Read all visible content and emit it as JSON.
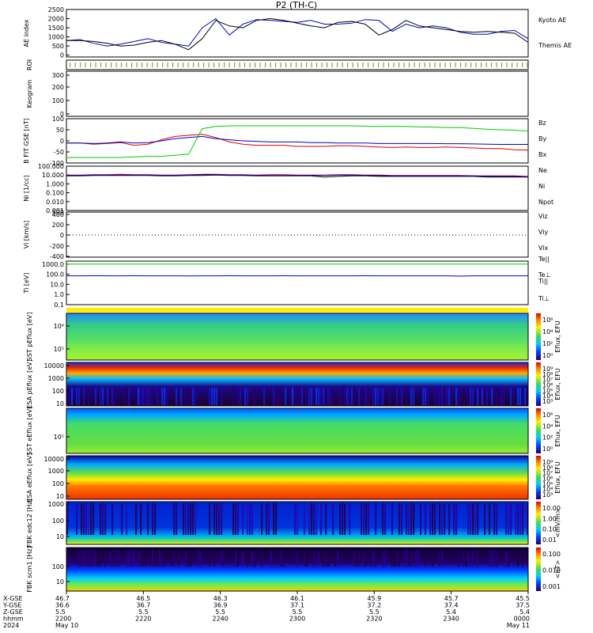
{
  "chart_data": [
    {
      "type": "line",
      "title": "P2 (TH-C)",
      "ylabel": "AE index",
      "ylim": [
        -100,
        2500
      ],
      "yticks": [
        "2500",
        "2000",
        "1500",
        "1000",
        "500",
        "0"
      ],
      "series": [
        {
          "name": "Kyoto AE",
          "color": "#0000cc",
          "values": [
            800,
            850,
            650,
            500,
            600,
            750,
            900,
            700,
            600,
            500,
            1500,
            2000,
            1100,
            1700,
            1950,
            1900,
            1850,
            1800,
            1900,
            1700,
            1700,
            1750,
            1950,
            1900,
            1300,
            1700,
            1500,
            1600,
            1500,
            1250,
            1150,
            1150,
            1300,
            1350,
            900
          ]
        },
        {
          "name": "Themis AE",
          "color": "#000000",
          "values": [
            800,
            800,
            750,
            650,
            500,
            550,
            700,
            800,
            600,
            300,
            900,
            1900,
            1600,
            1500,
            1900,
            2000,
            1900,
            1750,
            1600,
            1500,
            1800,
            1850,
            1700,
            1100,
            1400,
            1900,
            1600,
            1500,
            1400,
            1300,
            1250,
            1300,
            1250,
            1200,
            700
          ]
        }
      ]
    },
    {
      "type": "heatmap",
      "ylabel": "ROI"
    },
    {
      "type": "heatmap",
      "ylabel": "Keogram",
      "yticks": [
        "300",
        "200",
        "100",
        "0"
      ]
    },
    {
      "type": "line",
      "ylabel": "B FIT GSE [nT]",
      "ylim": [
        -100,
        100
      ],
      "yticks": [
        "100",
        "50",
        "0",
        "-50",
        "-100"
      ],
      "series": [
        {
          "name": "Bz",
          "color": "#dd0000",
          "values": [
            -10,
            -10,
            -15,
            -12,
            -8,
            -20,
            -15,
            5,
            20,
            25,
            30,
            15,
            -5,
            -15,
            -20,
            -20,
            -20,
            -25,
            -25,
            -25,
            -22,
            -22,
            -25,
            -28,
            -30,
            -28,
            -30,
            -30,
            -28,
            -30,
            -32,
            -35,
            -35,
            -40,
            -42
          ]
        },
        {
          "name": "By",
          "color": "#00cc00",
          "values": [
            -75,
            -75,
            -75,
            -75,
            -75,
            -72,
            -70,
            -70,
            -65,
            -60,
            55,
            65,
            68,
            68,
            68,
            68,
            68,
            68,
            68,
            68,
            68,
            68,
            66,
            65,
            65,
            65,
            63,
            62,
            60,
            60,
            56,
            52,
            50,
            48,
            45
          ]
        },
        {
          "name": "Bx",
          "color": "#0000cc",
          "values": [
            -10,
            -10,
            -12,
            -10,
            -5,
            -10,
            -8,
            0,
            10,
            15,
            20,
            10,
            5,
            0,
            -2,
            -5,
            -5,
            -5,
            -8,
            -8,
            -10,
            -10,
            -10,
            -12,
            -12,
            -12,
            -12,
            -12,
            -13,
            -13,
            -14,
            -15,
            -16,
            -16,
            -16
          ]
        }
      ]
    },
    {
      "type": "line",
      "ylabel": "Ni [1/cc]",
      "yscale": "log",
      "ylim": [
        0.001,
        100
      ],
      "yticks": [
        "100.000",
        "10.000",
        "1.000",
        "0.100",
        "0.010",
        "0.001"
      ],
      "series": [
        {
          "name": "Ne",
          "color": "#dd0000",
          "values": [
            10,
            10,
            11,
            11,
            12,
            11,
            11,
            10,
            10,
            11,
            12,
            12,
            11,
            11,
            10,
            11,
            11,
            10,
            10,
            10,
            11,
            11,
            10,
            10,
            9,
            9,
            9,
            9,
            9,
            9,
            8,
            8,
            8,
            8,
            7
          ]
        },
        {
          "name": "Ni",
          "color": "#000000",
          "values": [
            8,
            8,
            9,
            9,
            9,
            9,
            9,
            8,
            8,
            9,
            9,
            10,
            9,
            9,
            8,
            8,
            8,
            8,
            8,
            6,
            7,
            8,
            8,
            7,
            7,
            7,
            7,
            7,
            7,
            7,
            7,
            6,
            6,
            6,
            6
          ]
        },
        {
          "name": "Npot",
          "color": "#0000cc",
          "values": [
            9,
            9,
            10,
            10,
            10,
            10,
            10,
            9,
            9,
            10,
            11,
            11,
            10,
            10,
            9,
            9,
            9,
            9,
            9,
            9,
            10,
            10,
            9,
            9,
            8,
            8,
            8,
            8,
            8,
            8,
            8,
            7,
            7,
            7,
            6
          ]
        }
      ]
    },
    {
      "type": "line",
      "ylabel": "Vi [km/s]",
      "ylim": [
        -500,
        500
      ],
      "yticks": [
        "500",
        "400",
        "200",
        "0",
        "-200",
        "-400"
      ],
      "series": [
        {
          "name": "Viz",
          "color": "#dd0000",
          "values": []
        },
        {
          "name": "Viy",
          "color": "#00cc00",
          "values": []
        },
        {
          "name": "Vix",
          "color": "#0000cc",
          "values": []
        }
      ]
    },
    {
      "type": "line",
      "ylabel": "Ti [eV]",
      "yscale": "log",
      "ylim": [
        0.1,
        2000
      ],
      "yticks": [
        "1000.0",
        "100.0",
        "10.0",
        "1.0",
        "0.1"
      ],
      "series": [
        {
          "name": "Te||",
          "color": "#000000",
          "values": []
        },
        {
          "name": "Te⊥",
          "color": "#dd0000",
          "values": []
        },
        {
          "name": "Ti||",
          "color": "#00cc00",
          "values": [
            1000,
            1000,
            1000,
            1000,
            1000,
            1000,
            1000,
            1000,
            1000,
            1000,
            1000,
            1000,
            1000,
            1000,
            1000,
            1000,
            1000,
            1000,
            1000,
            1000,
            1000,
            1000,
            1000,
            1000,
            1000,
            1000,
            1000,
            1000,
            1000,
            1000,
            1000,
            1000,
            1000,
            1000,
            1000
          ]
        },
        {
          "name": "Ti⊥",
          "color": "#0000cc",
          "values": [
            70,
            70,
            72,
            70,
            70,
            72,
            70,
            70,
            70,
            68,
            70,
            70,
            72,
            70,
            70,
            70,
            72,
            70,
            70,
            70,
            70,
            70,
            72,
            70,
            70,
            70,
            70,
            70,
            70,
            65,
            70,
            70,
            70,
            70,
            70
          ]
        }
      ]
    },
    {
      "type": "heatmap",
      "ylabel": "SST pEflux [eV]",
      "yticks": [
        "10⁶",
        "10⁵"
      ],
      "colorbar_ticks": [
        "10⁸",
        "10⁴",
        "10²",
        "10⁰"
      ],
      "colorbar_label": "Eflux, EFU"
    },
    {
      "type": "heatmap",
      "ylabel": "ESA pEflux [eV]",
      "yticks": [
        "10000",
        "1000",
        "100",
        "10"
      ],
      "colorbar_ticks": [
        "10⁹",
        "10⁸",
        "10⁷",
        "10⁶",
        "10⁵",
        "10⁴",
        "10³"
      ],
      "colorbar_label": "Eflux, EFU"
    },
    {
      "type": "heatmap",
      "ylabel": "SST eEflux [eV]",
      "yticks": [
        "10⁵"
      ],
      "colorbar_ticks": [
        "10⁶",
        "10⁴",
        "10²",
        "10⁰"
      ],
      "colorbar_label": "Eflux, EFU"
    },
    {
      "type": "heatmap",
      "ylabel": "ESA eEflux [eV]",
      "yticks": [
        "10000",
        "1000",
        "100",
        "10"
      ],
      "colorbar_ticks": [
        "10⁹",
        "10⁸",
        "10⁷",
        "10⁶",
        "10⁵",
        "10⁴",
        "10³"
      ],
      "colorbar_label": "Eflux, EFU"
    },
    {
      "type": "heatmap",
      "ylabel": "FBK edc12 [Hz]",
      "yticks": [
        "1000",
        "100",
        "10"
      ],
      "colorbar_ticks": [
        "10.00",
        "1.00",
        "0.10",
        "0.01"
      ],
      "colorbar_label": "<mV/m>"
    },
    {
      "type": "heatmap",
      "ylabel": "FBK scm1 [Hz]",
      "yticks": [
        "100",
        "10"
      ],
      "colorbar_ticks": [
        "0.100",
        "0.010",
        "0.001"
      ],
      "colorbar_label": "<nT>"
    },
    {
      "type": "table",
      "row_labels": [
        "X-GSE",
        "Y-GSE",
        "Z-GSE",
        "hhmm",
        "2024"
      ],
      "columns": [
        {
          "values": [
            "46.7",
            "36.6",
            "5.5",
            "2200",
            "May 10"
          ]
        },
        {
          "values": [
            "46.5",
            "36.7",
            "5.5",
            "2220",
            ""
          ]
        },
        {
          "values": [
            "46.3",
            "36.9",
            "5.5",
            "2240",
            ""
          ]
        },
        {
          "values": [
            "46.1",
            "37.1",
            "5.5",
            "2300",
            ""
          ]
        },
        {
          "values": [
            "45.9",
            "37.2",
            "5.5",
            "2320",
            ""
          ]
        },
        {
          "values": [
            "45.7",
            "37.4",
            "5.4",
            "2340",
            ""
          ]
        },
        {
          "values": [
            "45.5",
            "37.5",
            "5.4",
            "0000",
            "May 11"
          ]
        }
      ]
    }
  ],
  "colors": {
    "frame": "#000000",
    "blue": "#0000cc",
    "red": "#dd0000",
    "green": "#00cc00"
  }
}
